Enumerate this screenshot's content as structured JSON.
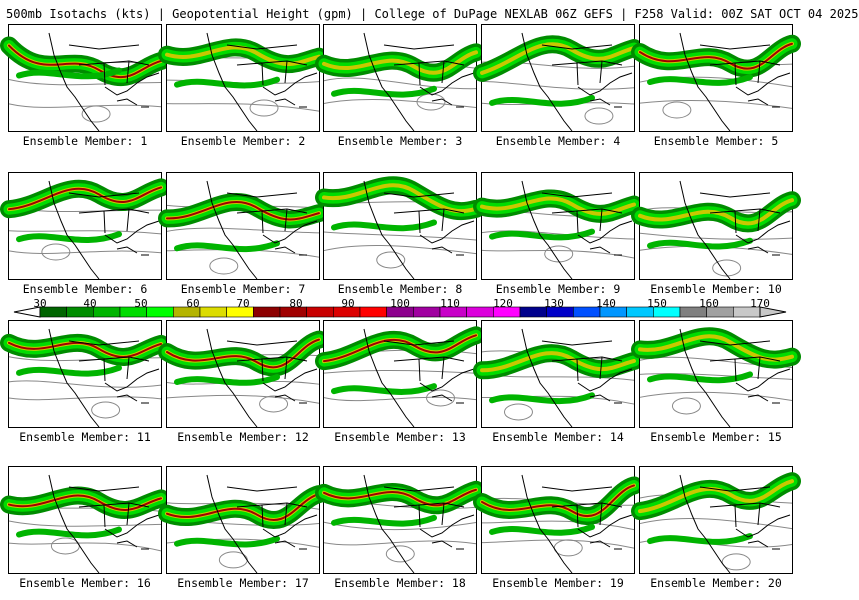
{
  "header": {
    "title": "500mb Isotachs (kts) | Geopotential Height (gpm) | College of DuPage NEXLAB   06Z GEFS | F258 Valid: 00Z SAT OCT 04 2025"
  },
  "panels": [
    {
      "label": "Ensemble Member: 1"
    },
    {
      "label": "Ensemble Member: 2"
    },
    {
      "label": "Ensemble Member: 3"
    },
    {
      "label": "Ensemble Member: 4"
    },
    {
      "label": "Ensemble Member: 5"
    },
    {
      "label": "Ensemble Member: 6"
    },
    {
      "label": "Ensemble Member: 7"
    },
    {
      "label": "Ensemble Member: 8"
    },
    {
      "label": "Ensemble Member: 9"
    },
    {
      "label": "Ensemble Member: 10"
    },
    {
      "label": "Ensemble Member: 11"
    },
    {
      "label": "Ensemble Member: 12"
    },
    {
      "label": "Ensemble Member: 13"
    },
    {
      "label": "Ensemble Member: 14"
    },
    {
      "label": "Ensemble Member: 15"
    },
    {
      "label": "Ensemble Member: 16"
    },
    {
      "label": "Ensemble Member: 17"
    },
    {
      "label": "Ensemble Member: 18"
    },
    {
      "label": "Ensemble Member: 19"
    },
    {
      "label": "Ensemble Member: 20"
    }
  ],
  "colorbar": {
    "ticks": [
      "30",
      "40",
      "50",
      "60",
      "70",
      "80",
      "90",
      "100",
      "110",
      "120",
      "130",
      "140",
      "150",
      "160",
      "170"
    ],
    "colors": [
      "#006400",
      "#008c00",
      "#00b400",
      "#00dc00",
      "#00ff00",
      "#b4b400",
      "#dcdc00",
      "#ffff00",
      "#8c0000",
      "#a00000",
      "#c80000",
      "#dc0000",
      "#ff0000",
      "#8c008c",
      "#a000a0",
      "#c800c8",
      "#dc00dc",
      "#ff00ff",
      "#00008c",
      "#0000c8",
      "#0050ff",
      "#0096ff",
      "#00c8ff",
      "#00ffff",
      "#808080",
      "#a0a0a0",
      "#c8c8c8"
    ]
  }
}
